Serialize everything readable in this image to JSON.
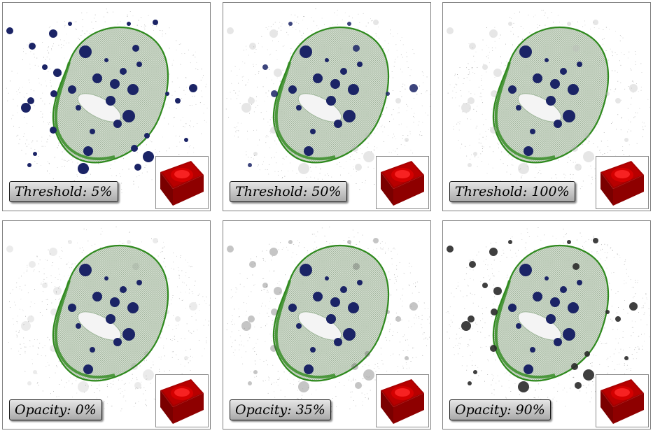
{
  "panels": [
    {
      "label": "Threshold: 5%",
      "ghost_opacity": 0.0,
      "mode": "threshold",
      "hidden_threshold": 0.05
    },
    {
      "label": "Threshold: 50%",
      "ghost_opacity": 0.0,
      "mode": "threshold",
      "hidden_threshold": 0.5
    },
    {
      "label": "Threshold: 100%",
      "ghost_opacity": 0.0,
      "mode": "threshold",
      "hidden_threshold": 1.0
    },
    {
      "label": "Opacity: 0%",
      "ghost_opacity": 0.0,
      "mode": "opacity"
    },
    {
      "label": "Opacity: 35%",
      "ghost_opacity": 0.35,
      "mode": "opacity"
    },
    {
      "label": "Opacity: 90%",
      "ghost_opacity": 0.9,
      "mode": "opacity"
    }
  ],
  "colors": {
    "focus_blob": "#1b2466",
    "context_blob": "#5a5a5a",
    "ghost_blob": "#b8b8b8",
    "vessel_fill": "#c9d6c4",
    "vessel_edge": "#2f8a1e",
    "inset_red": "#d40000",
    "inset_dark": "#7a0000",
    "label_border": "#1a1a1a"
  },
  "icons": {
    "inset": "red-cube-icon"
  }
}
